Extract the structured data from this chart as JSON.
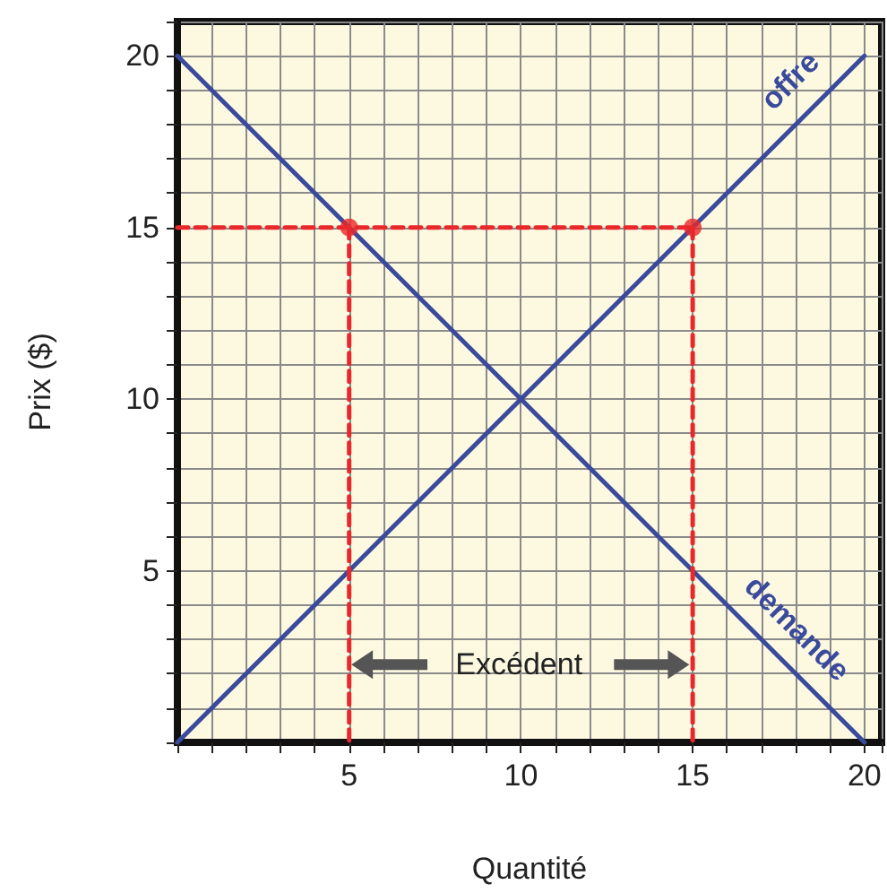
{
  "chart_data": {
    "type": "line",
    "xlabel": "Quantité",
    "ylabel": "Prix ($)",
    "xlim": [
      0,
      20.5
    ],
    "ylim": [
      0,
      21
    ],
    "xticks": [
      {
        "value": 0,
        "label": null
      },
      {
        "value": 1,
        "label": null
      },
      {
        "value": 2,
        "label": null
      },
      {
        "value": 3,
        "label": null
      },
      {
        "value": 4,
        "label": null
      },
      5,
      {
        "value": 6,
        "label": null
      },
      {
        "value": 7,
        "label": null
      },
      {
        "value": 8,
        "label": null
      },
      {
        "value": 9,
        "label": null
      },
      10,
      {
        "value": 11,
        "label": null
      },
      {
        "value": 12,
        "label": null
      },
      {
        "value": 13,
        "label": null
      },
      {
        "value": 14,
        "label": null
      },
      15,
      {
        "value": 16,
        "label": null
      },
      {
        "value": 17,
        "label": null
      },
      {
        "value": 18,
        "label": null
      },
      {
        "value": 19,
        "label": null
      },
      20
    ],
    "yticks": [
      {
        "value": 0,
        "label": null
      },
      {
        "value": 1,
        "label": null
      },
      {
        "value": 2,
        "label": null
      },
      {
        "value": 3,
        "label": null
      },
      {
        "value": 4,
        "label": null
      },
      5,
      {
        "value": 6,
        "label": null
      },
      {
        "value": 7,
        "label": null
      },
      {
        "value": 8,
        "label": null
      },
      {
        "value": 9,
        "label": null
      },
      10,
      {
        "value": 11,
        "label": null
      },
      {
        "value": 12,
        "label": null
      },
      {
        "value": 13,
        "label": null
      },
      {
        "value": 14,
        "label": null
      },
      15,
      {
        "value": 16,
        "label": null
      },
      {
        "value": 17,
        "label": null
      },
      {
        "value": 18,
        "label": null
      },
      {
        "value": 19,
        "label": null
      },
      20,
      {
        "value": 21,
        "label": null
      }
    ],
    "grid": true,
    "marker": "none",
    "series": [
      {
        "color": "#3a4a9c",
        "x": [
          0,
          20
        ],
        "values": [
          0,
          20
        ]
      },
      {
        "color": "#3a4a9c",
        "x": [
          0,
          20
        ],
        "values": [
          20,
          0
        ]
      },
      {
        "color": "#e8282b",
        "line_style": "dashed",
        "x": [
          0,
          15
        ],
        "values": [
          15,
          15
        ]
      },
      {
        "color": "#e8282b",
        "line_style": "dashed",
        "x": [
          5,
          5
        ],
        "values": [
          15,
          0
        ]
      },
      {
        "color": "#e8282b",
        "line_style": "dashed",
        "x": [
          15,
          15
        ],
        "values": [
          15,
          0
        ]
      },
      {
        "type": "scatter",
        "marker": "circle",
        "color": "#e8282b",
        "x": [
          5,
          15
        ],
        "values": [
          15,
          15
        ]
      }
    ],
    "annotations": [
      "offre",
      "demande",
      "Excédent"
    ]
  }
}
